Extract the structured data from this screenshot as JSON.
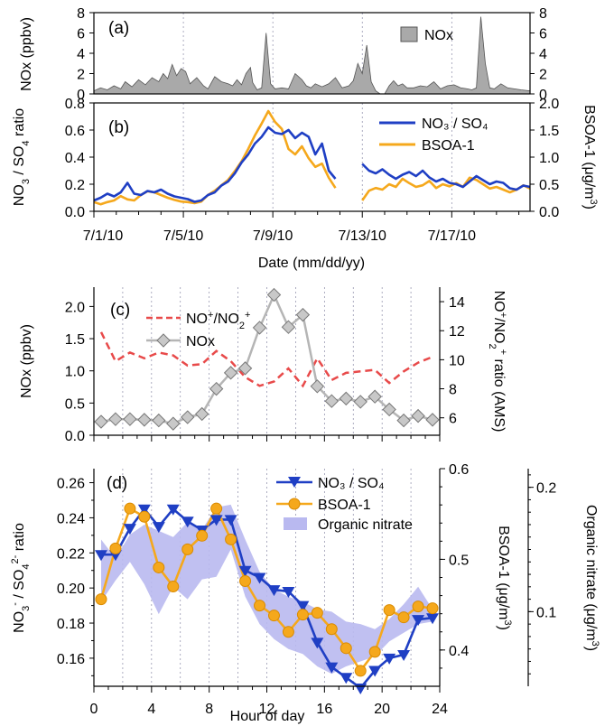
{
  "chart_data": [
    {
      "id": "a",
      "type": "area",
      "panel_label": "(a)",
      "ylabel": "NOx (ppbv)",
      "ylim": [
        0,
        8
      ],
      "yticks": [
        0,
        2,
        4,
        6,
        8
      ],
      "xlim": [
        0,
        19.5
      ],
      "x_unit": "days since 7/1/10",
      "legend": "NOx",
      "colors": {
        "fill": "#a9a9a9",
        "stroke": "#555555"
      },
      "series": [
        {
          "name": "NOx",
          "x": [
            0,
            0.3,
            0.6,
            0.9,
            1.2,
            1.4,
            1.7,
            2.0,
            2.3,
            2.6,
            2.9,
            3.1,
            3.3,
            3.5,
            3.7,
            3.9,
            4.1,
            4.3,
            4.6,
            4.9,
            5.1,
            5.4,
            5.7,
            6.0,
            6.2,
            6.4,
            6.6,
            6.8,
            7.0,
            7.1,
            7.3,
            7.5,
            7.7,
            7.9,
            8.1,
            8.4,
            8.7,
            9.0,
            9.3,
            9.5,
            9.7,
            9.9,
            10.2,
            10.5,
            10.8,
            11.1,
            11.4,
            11.6,
            11.8,
            12.0,
            12.2,
            12.4,
            12.6,
            12.8,
            13.0,
            13.2,
            13.4,
            13.6,
            13.8,
            14.0,
            14.3,
            14.6,
            14.9,
            15.2,
            15.5,
            15.8,
            16.1,
            16.4,
            16.7,
            16.9,
            17.1,
            17.3,
            17.5,
            17.7,
            17.9,
            18.2,
            18.5,
            18.8,
            19.1,
            19.5
          ],
          "y": [
            0.3,
            0.6,
            0.4,
            0.8,
            0.5,
            1.2,
            0.7,
            1.4,
            0.9,
            1.6,
            1.2,
            2.0,
            1.5,
            2.9,
            1.8,
            2.5,
            2.2,
            1.0,
            1.6,
            0.8,
            0.5,
            1.7,
            1.2,
            1.0,
            0.8,
            1.4,
            0.9,
            2.0,
            2.6,
            1.1,
            0.4,
            0.6,
            6.0,
            1.0,
            0.5,
            0.6,
            0.5,
            2.0,
            1.4,
            0.8,
            0.6,
            1.0,
            0.7,
            1.0,
            1.6,
            0.6,
            0.8,
            1.3,
            3.0,
            2.0,
            4.8,
            1.2,
            0.3,
            0.0,
            0.0,
            0.8,
            1.3,
            0.8,
            1.0,
            0.6,
            0.6,
            0.8,
            0.7,
            1.2,
            0.5,
            0.8,
            0.9,
            0.6,
            0.5,
            0.4,
            0.6,
            7.6,
            3.0,
            0.6,
            0.5,
            1.0,
            0.6,
            0.5,
            0.4,
            0.3
          ]
        }
      ]
    },
    {
      "id": "b",
      "type": "line",
      "panel_label": "(b)",
      "ylabel": "NO₃ / SO₄ ratio",
      "ylabel_right": "BSOA-1 (μg/m³)",
      "ylim": [
        0,
        0.8
      ],
      "ylim_right": [
        0,
        2.0
      ],
      "yticks": [
        0.0,
        0.2,
        0.4,
        0.6,
        0.8
      ],
      "yticks_right": [
        0.0,
        0.5,
        1.0,
        1.5,
        2.0
      ],
      "xlim": [
        0,
        19.5
      ],
      "xticks": [
        "7/1/10",
        "7/5/10",
        "7/9/10",
        "7/13/10",
        "7/17/10"
      ],
      "xtick_pos": [
        0,
        4,
        8,
        12,
        16
      ],
      "xlabel": "Date (mm/dd/yy)",
      "legend": "top-right",
      "series": [
        {
          "name": "NO₃ / SO₄",
          "color": "#1f3fc4",
          "segments": [
            {
              "x": [
                0.0,
                0.3,
                0.6,
                0.9,
                1.2,
                1.5,
                1.8,
                2.1,
                2.4,
                2.7,
                3.0,
                3.3,
                3.6,
                3.9,
                4.2,
                4.5,
                4.8,
                5.1,
                5.4,
                5.7,
                6.0,
                6.3,
                6.6,
                6.9,
                7.2,
                7.5,
                7.8,
                8.1,
                8.4,
                8.7,
                9.0,
                9.3,
                9.6,
                9.9,
                10.2,
                10.5,
                10.8
              ],
              "y": [
                0.08,
                0.1,
                0.13,
                0.11,
                0.14,
                0.21,
                0.13,
                0.12,
                0.15,
                0.14,
                0.16,
                0.13,
                0.11,
                0.1,
                0.09,
                0.07,
                0.08,
                0.12,
                0.14,
                0.19,
                0.22,
                0.28,
                0.36,
                0.42,
                0.5,
                0.55,
                0.62,
                0.58,
                0.57,
                0.6,
                0.54,
                0.58,
                0.55,
                0.42,
                0.5,
                0.3,
                0.24
              ]
            },
            {
              "x": [
                12.0,
                12.3,
                12.6,
                12.9,
                13.2,
                13.5,
                13.8,
                14.1,
                14.4,
                14.7,
                15.0,
                15.3,
                15.6,
                15.9,
                16.2,
                16.5,
                16.8,
                17.1,
                17.4,
                17.7,
                18.0,
                18.3,
                18.6,
                18.9,
                19.2,
                19.5
              ],
              "y": [
                0.35,
                0.3,
                0.28,
                0.31,
                0.27,
                0.24,
                0.27,
                0.29,
                0.26,
                0.3,
                0.25,
                0.22,
                0.24,
                0.21,
                0.2,
                0.18,
                0.22,
                0.26,
                0.23,
                0.2,
                0.22,
                0.21,
                0.17,
                0.16,
                0.19,
                0.18
              ]
            }
          ]
        },
        {
          "name": "BSOA-1",
          "color": "#f5a81c",
          "segments": [
            {
              "x": [
                0.0,
                0.3,
                0.6,
                0.9,
                1.2,
                1.5,
                1.8,
                2.1,
                2.4,
                2.7,
                3.0,
                3.3,
                3.6,
                3.9,
                4.2,
                4.5,
                4.8,
                5.1,
                5.4,
                5.7,
                6.0,
                6.3,
                6.6,
                6.9,
                7.2,
                7.5,
                7.8,
                8.1,
                8.4,
                8.7,
                9.0,
                9.3,
                9.6,
                9.9,
                10.2,
                10.5,
                10.8
              ],
              "y": [
                0.17,
                0.13,
                0.17,
                0.2,
                0.28,
                0.22,
                0.2,
                0.3,
                0.37,
                0.35,
                0.3,
                0.25,
                0.21,
                0.18,
                0.17,
                0.15,
                0.18,
                0.3,
                0.38,
                0.48,
                0.58,
                0.74,
                0.92,
                1.15,
                1.4,
                1.62,
                1.85,
                1.65,
                1.52,
                1.15,
                1.05,
                1.2,
                0.98,
                0.82,
                0.88,
                0.62,
                0.43
              ]
            },
            {
              "x": [
                12.0,
                12.3,
                12.6,
                12.9,
                13.2,
                13.5,
                13.8,
                14.1,
                14.4,
                14.7,
                15.0,
                15.3,
                15.6,
                15.9,
                16.2,
                16.5,
                16.8,
                17.1,
                17.4,
                17.7,
                18.0,
                18.3,
                18.6,
                18.9,
                19.2,
                19.5
              ],
              "y": [
                0.2,
                0.38,
                0.43,
                0.4,
                0.5,
                0.45,
                0.6,
                0.52,
                0.45,
                0.48,
                0.56,
                0.43,
                0.5,
                0.46,
                0.52,
                0.45,
                0.62,
                0.58,
                0.5,
                0.42,
                0.45,
                0.4,
                0.35,
                0.4,
                0.48,
                0.42
              ]
            }
          ]
        }
      ]
    },
    {
      "id": "c",
      "type": "line",
      "panel_label": "(c)",
      "ylabel": "NOx (ppbv)",
      "ylabel_right": "NO⁺/NO₂⁺ ratio (AMS)",
      "ylim": [
        0,
        2.3
      ],
      "ylim_right": [
        4.8,
        15
      ],
      "yticks": [
        0.0,
        0.5,
        1.0,
        1.5,
        2.0
      ],
      "yticks_right": [
        6,
        8,
        10,
        12,
        14
      ],
      "xlim": [
        0,
        24
      ],
      "legend": "top-left",
      "series": [
        {
          "name": "NO⁺/NO₂⁺",
          "color": "#e84a4a",
          "style": "dashed",
          "axis": "right",
          "x": [
            0.5,
            1.5,
            2.5,
            3.5,
            4.5,
            5.5,
            6.5,
            7.5,
            8.5,
            9.5,
            10.5,
            11.5,
            12.5,
            13.5,
            14.5,
            15.5,
            16.5,
            17.5,
            18.5,
            19.5,
            20.5,
            21.5,
            22.5,
            23.5
          ],
          "y": [
            11.9,
            9.9,
            10.5,
            10.1,
            10.5,
            10.3,
            9.6,
            9.7,
            10.6,
            9.9,
            8.8,
            8.2,
            8.5,
            9.4,
            8.2,
            10.1,
            8.6,
            9.1,
            9.2,
            9.3,
            8.4,
            9.2,
            9.8,
            10.2
          ]
        },
        {
          "name": "NOx",
          "color": "#b5b5b5",
          "axis": "left",
          "x": [
            0.5,
            1.5,
            2.5,
            3.5,
            4.5,
            5.5,
            6.5,
            7.5,
            8.5,
            9.5,
            10.5,
            11.5,
            12.5,
            13.5,
            14.5,
            15.5,
            16.5,
            17.5,
            18.5,
            19.5,
            20.5,
            21.5,
            22.5,
            23.5
          ],
          "y": [
            0.21,
            0.25,
            0.25,
            0.24,
            0.23,
            0.18,
            0.28,
            0.33,
            0.72,
            0.97,
            1.04,
            1.67,
            2.18,
            1.68,
            1.87,
            0.76,
            0.53,
            0.57,
            0.52,
            0.6,
            0.4,
            0.23,
            0.3,
            0.24
          ]
        }
      ]
    },
    {
      "id": "d",
      "type": "line",
      "panel_label": "(d)",
      "ylabel": "NO₃⁻ / SO₄²⁻ ratio",
      "ylabel_right": "BSOA-1 (μg/m³)",
      "ylabel_right2": "Organic nitrate (μg/m³)",
      "ylim": [
        0.144,
        0.268
      ],
      "ylim_right": [
        0.36,
        0.6
      ],
      "ylim_right2": [
        0.04,
        0.215
      ],
      "yticks": [
        0.16,
        0.18,
        0.2,
        0.22,
        0.24,
        0.26
      ],
      "yticks_right": [
        0.4,
        0.5,
        0.6
      ],
      "yticks_right2": [
        0.1,
        0.2
      ],
      "xlim": [
        0,
        24
      ],
      "xticks": [
        0,
        4,
        8,
        12,
        16,
        20,
        24
      ],
      "xlabel": "Hour of day",
      "legend": "top-right",
      "series": [
        {
          "name": "NO₃ / SO₄",
          "color": "#1f3fc4",
          "marker": "triangle-down",
          "axis": "left",
          "x": [
            0.5,
            1.5,
            2.5,
            3.5,
            4.5,
            5.5,
            6.5,
            7.5,
            8.5,
            9.5,
            10.5,
            11.5,
            12.5,
            13.5,
            14.5,
            15.5,
            16.5,
            17.5,
            18.5,
            19.5,
            20.5,
            21.5,
            22.5,
            23.5
          ],
          "y": [
            0.219,
            0.219,
            0.234,
            0.245,
            0.235,
            0.245,
            0.238,
            0.233,
            0.239,
            0.239,
            0.21,
            0.206,
            0.199,
            0.198,
            0.19,
            0.169,
            0.155,
            0.149,
            0.143,
            0.153,
            0.16,
            0.162,
            0.182,
            0.183
          ]
        },
        {
          "name": "BSOA-1",
          "color": "#f5a81c",
          "marker": "circle",
          "axis": "right",
          "x": [
            0.5,
            1.5,
            2.5,
            3.5,
            4.5,
            5.5,
            6.5,
            7.5,
            8.5,
            9.5,
            10.5,
            11.5,
            12.5,
            13.5,
            14.5,
            15.5,
            16.5,
            17.5,
            18.5,
            19.5,
            20.5,
            21.5,
            22.5,
            23.5
          ],
          "y": [
            0.456,
            0.512,
            0.556,
            0.547,
            0.491,
            0.47,
            0.511,
            0.526,
            0.556,
            0.522,
            0.476,
            0.449,
            0.438,
            0.42,
            0.439,
            0.441,
            0.423,
            0.402,
            0.377,
            0.398,
            0.444,
            0.436,
            0.448,
            0.446
          ]
        },
        {
          "name": "Organic nitrate",
          "color": "#b9b9f0",
          "type": "band",
          "axis": "right2",
          "x": [
            0.5,
            1.5,
            2.5,
            3.5,
            4.5,
            5.5,
            6.5,
            7.5,
            8.5,
            9.5,
            10.5,
            11.5,
            12.5,
            13.5,
            14.5,
            15.5,
            16.5,
            17.5,
            18.5,
            19.5,
            20.5,
            21.5,
            22.5,
            23.5
          ],
          "lower": [
            0.108,
            0.125,
            0.14,
            0.122,
            0.098,
            0.12,
            0.11,
            0.126,
            0.128,
            0.15,
            0.112,
            0.09,
            0.078,
            0.07,
            0.066,
            0.056,
            0.05,
            0.056,
            0.06,
            0.064,
            0.076,
            0.083,
            0.09,
            0.092
          ],
          "upper": [
            0.158,
            0.143,
            0.162,
            0.17,
            0.165,
            0.16,
            0.172,
            0.166,
            0.184,
            0.186,
            0.158,
            0.132,
            0.118,
            0.112,
            0.108,
            0.102,
            0.1,
            0.092,
            0.09,
            0.086,
            0.094,
            0.106,
            0.12,
            0.102
          ]
        }
      ]
    }
  ]
}
